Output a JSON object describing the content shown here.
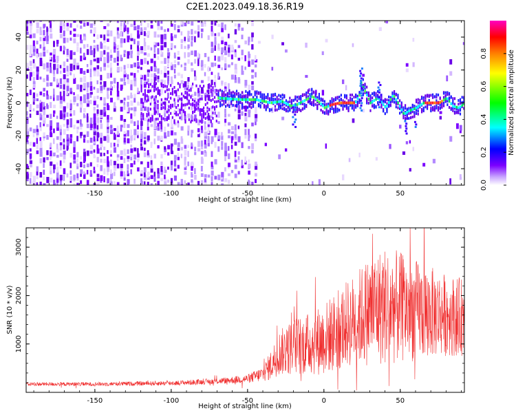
{
  "title": "C2E1.2023.049.18.36.R19",
  "chart_data": [
    {
      "type": "heatmap",
      "xlabel": "Height of straight line (km)",
      "ylabel": "Frequency (Hz)",
      "xlim": [
        -195,
        92
      ],
      "ylim": [
        -50,
        50
      ],
      "x_ticks": [
        -150,
        -100,
        -50,
        0,
        50
      ],
      "y_ticks": [
        -40,
        -20,
        0,
        20,
        40
      ],
      "colorbar": {
        "label": "Normalized spectral amplitude",
        "range": [
          0.0,
          1.0
        ],
        "ticks": [
          0.0,
          0.2,
          0.4,
          0.6,
          0.8
        ]
      },
      "ridge_frequency": {
        "x": [
          -70,
          -55,
          -45,
          -35,
          -28,
          -22,
          -18,
          -12,
          -8,
          -3,
          0,
          5,
          10,
          15,
          20,
          23,
          24,
          26,
          30,
          35,
          40,
          45,
          48,
          52,
          55,
          60,
          65,
          70,
          75,
          80,
          84,
          88,
          92
        ],
        "y": [
          3,
          2,
          2,
          0,
          1,
          -2,
          -1,
          2,
          4,
          0,
          -3,
          -1,
          0,
          0,
          0,
          5,
          12,
          8,
          0,
          3,
          -3,
          5,
          0,
          -7,
          -5,
          -3,
          0,
          0,
          0,
          3,
          -2,
          -3,
          0
        ]
      },
      "colors": [
        "#ffffff",
        "#c9a6ff",
        "#7b00ff",
        "#0000ff",
        "#00ffff",
        "#00ff00",
        "#ffff00",
        "#ff8000",
        "#ff0000",
        "#ff00c0"
      ]
    },
    {
      "type": "line",
      "xlabel": "Height of straight line (km)",
      "ylabel": "SNR (10 * v/v)",
      "xlim": [
        -195,
        92
      ],
      "ylim": [
        0,
        3400
      ],
      "x_ticks": [
        -150,
        -100,
        -50,
        0,
        50
      ],
      "y_ticks": [
        1000,
        2000,
        3000
      ],
      "series": [
        {
          "color": "#f03030",
          "envelope": {
            "x": [
              -195,
              -150,
              -100,
              -70,
              -50,
              -40,
              -35,
              -30,
              -20,
              -10,
              0,
              10,
              20,
              30,
              40,
              50,
              60,
              70,
              80,
              92
            ],
            "y": [
              170,
              170,
              190,
              230,
              280,
              380,
              550,
              800,
              950,
              1000,
              1100,
              1300,
              1500,
              1700,
              1800,
              1750,
              1700,
              1650,
              1600,
              1550
            ]
          },
          "noise": {
            "x": [
              -195,
              -150,
              -100,
              -70,
              -50,
              -40,
              -35,
              -30,
              -20,
              -10,
              0,
              10,
              20,
              30,
              40,
              50,
              60,
              70,
              80,
              92
            ],
            "y": [
              40,
              40,
              50,
              60,
              90,
              160,
              300,
              450,
              600,
              650,
              750,
              850,
              950,
              1150,
              1250,
              1150,
              1050,
              950,
              850,
              800
            ]
          }
        }
      ]
    }
  ]
}
